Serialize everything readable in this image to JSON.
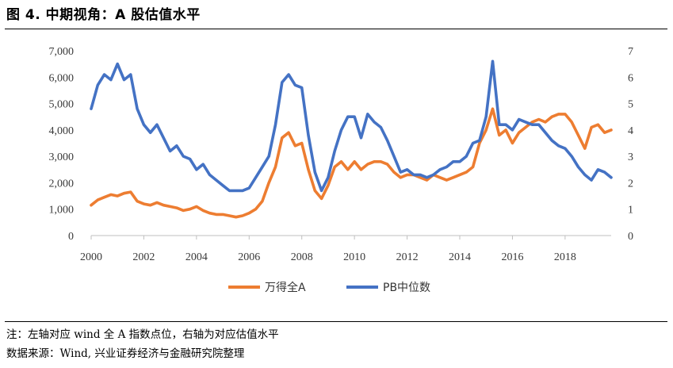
{
  "title": "图 4. 中期视角：A 股估值水平",
  "notes": {
    "note": "注：左轴对应 wind 全 A 指数点位，右轴为对应估值水平",
    "source": "数据来源：Wind, 兴业证券经济与金融研究院整理"
  },
  "colors": {
    "series1": "#ED7D31",
    "series2": "#4472C4",
    "axis": "#bfbfbf"
  },
  "chart_data": {
    "type": "line",
    "title": "",
    "x_ticks": [
      "2000",
      "2002",
      "2004",
      "2006",
      "2008",
      "2010",
      "2012",
      "2014",
      "2016",
      "2018"
    ],
    "xlim": [
      2000,
      2019.75
    ],
    "left_axis": {
      "lim": [
        0,
        7000
      ],
      "ticks": [
        "0",
        "1,000",
        "2,000",
        "3,000",
        "4,000",
        "5,000",
        "6,000",
        "7,000"
      ]
    },
    "right_axis": {
      "lim": [
        0,
        7
      ],
      "ticks": [
        "0",
        "1",
        "2",
        "3",
        "4",
        "5",
        "6",
        "7"
      ]
    },
    "grid": false,
    "legend_position": "bottom",
    "series": [
      {
        "name": "万得全A",
        "axis": "left",
        "x": [
          2000.0,
          2000.25,
          2000.5,
          2000.75,
          2001.0,
          2001.25,
          2001.5,
          2001.75,
          2002.0,
          2002.25,
          2002.5,
          2002.75,
          2003.0,
          2003.25,
          2003.5,
          2003.75,
          2004.0,
          2004.25,
          2004.5,
          2004.75,
          2005.0,
          2005.25,
          2005.5,
          2005.75,
          2006.0,
          2006.25,
          2006.5,
          2006.75,
          2007.0,
          2007.25,
          2007.5,
          2007.75,
          2008.0,
          2008.25,
          2008.5,
          2008.75,
          2009.0,
          2009.25,
          2009.5,
          2009.75,
          2010.0,
          2010.25,
          2010.5,
          2010.75,
          2011.0,
          2011.25,
          2011.5,
          2011.75,
          2012.0,
          2012.25,
          2012.5,
          2012.75,
          2013.0,
          2013.25,
          2013.5,
          2013.75,
          2014.0,
          2014.25,
          2014.5,
          2014.75,
          2015.0,
          2015.25,
          2015.5,
          2015.75,
          2016.0,
          2016.25,
          2016.5,
          2016.75,
          2017.0,
          2017.25,
          2017.5,
          2017.75,
          2018.0,
          2018.25,
          2018.5,
          2018.75,
          2019.0,
          2019.25,
          2019.5,
          2019.75
        ],
        "values": [
          1150,
          1350,
          1450,
          1550,
          1500,
          1600,
          1650,
          1300,
          1200,
          1150,
          1250,
          1150,
          1100,
          1050,
          950,
          1000,
          1100,
          950,
          850,
          800,
          800,
          750,
          700,
          750,
          850,
          1000,
          1300,
          2000,
          2600,
          3700,
          3900,
          3400,
          3500,
          2500,
          1700,
          1400,
          1900,
          2600,
          2800,
          2500,
          2800,
          2500,
          2700,
          2800,
          2800,
          2700,
          2400,
          2200,
          2300,
          2300,
          2200,
          2100,
          2300,
          2200,
          2100,
          2200,
          2300,
          2400,
          2600,
          3500,
          4000,
          4800,
          3800,
          4000,
          3500,
          3900,
          4100,
          4300,
          4400,
          4300,
          4500,
          4600,
          4600,
          4300,
          3800,
          3300,
          4100,
          4200,
          3900,
          4000
        ]
      },
      {
        "name": "PB中位数",
        "axis": "right",
        "x": [
          2000.0,
          2000.25,
          2000.5,
          2000.75,
          2001.0,
          2001.25,
          2001.5,
          2001.75,
          2002.0,
          2002.25,
          2002.5,
          2002.75,
          2003.0,
          2003.25,
          2003.5,
          2003.75,
          2004.0,
          2004.25,
          2004.5,
          2004.75,
          2005.0,
          2005.25,
          2005.5,
          2005.75,
          2006.0,
          2006.25,
          2006.5,
          2006.75,
          2007.0,
          2007.25,
          2007.5,
          2007.75,
          2008.0,
          2008.25,
          2008.5,
          2008.75,
          2009.0,
          2009.25,
          2009.5,
          2009.75,
          2010.0,
          2010.25,
          2010.5,
          2010.75,
          2011.0,
          2011.25,
          2011.5,
          2011.75,
          2012.0,
          2012.25,
          2012.5,
          2012.75,
          2013.0,
          2013.25,
          2013.5,
          2013.75,
          2014.0,
          2014.25,
          2014.5,
          2014.75,
          2015.0,
          2015.25,
          2015.5,
          2015.75,
          2016.0,
          2016.25,
          2016.5,
          2016.75,
          2017.0,
          2017.25,
          2017.5,
          2017.75,
          2018.0,
          2018.25,
          2018.5,
          2018.75,
          2019.0,
          2019.25,
          2019.5,
          2019.75
        ],
        "values": [
          4.8,
          5.7,
          6.1,
          5.9,
          6.5,
          5.9,
          6.1,
          4.8,
          4.2,
          3.9,
          4.2,
          3.7,
          3.2,
          3.4,
          3.0,
          2.9,
          2.5,
          2.7,
          2.3,
          2.1,
          1.9,
          1.7,
          1.7,
          1.7,
          1.8,
          2.2,
          2.6,
          3.0,
          4.2,
          5.8,
          6.1,
          5.7,
          5.6,
          3.8,
          2.4,
          1.7,
          2.2,
          3.2,
          4.0,
          4.5,
          4.5,
          3.7,
          4.6,
          4.3,
          4.1,
          3.6,
          3.0,
          2.4,
          2.5,
          2.3,
          2.3,
          2.2,
          2.3,
          2.5,
          2.6,
          2.8,
          2.8,
          3.0,
          3.5,
          3.6,
          4.5,
          6.6,
          4.2,
          4.2,
          4.0,
          4.4,
          4.3,
          4.2,
          4.2,
          3.9,
          3.6,
          3.4,
          3.3,
          3.0,
          2.6,
          2.3,
          2.1,
          2.5,
          2.4,
          2.2
        ]
      }
    ]
  }
}
